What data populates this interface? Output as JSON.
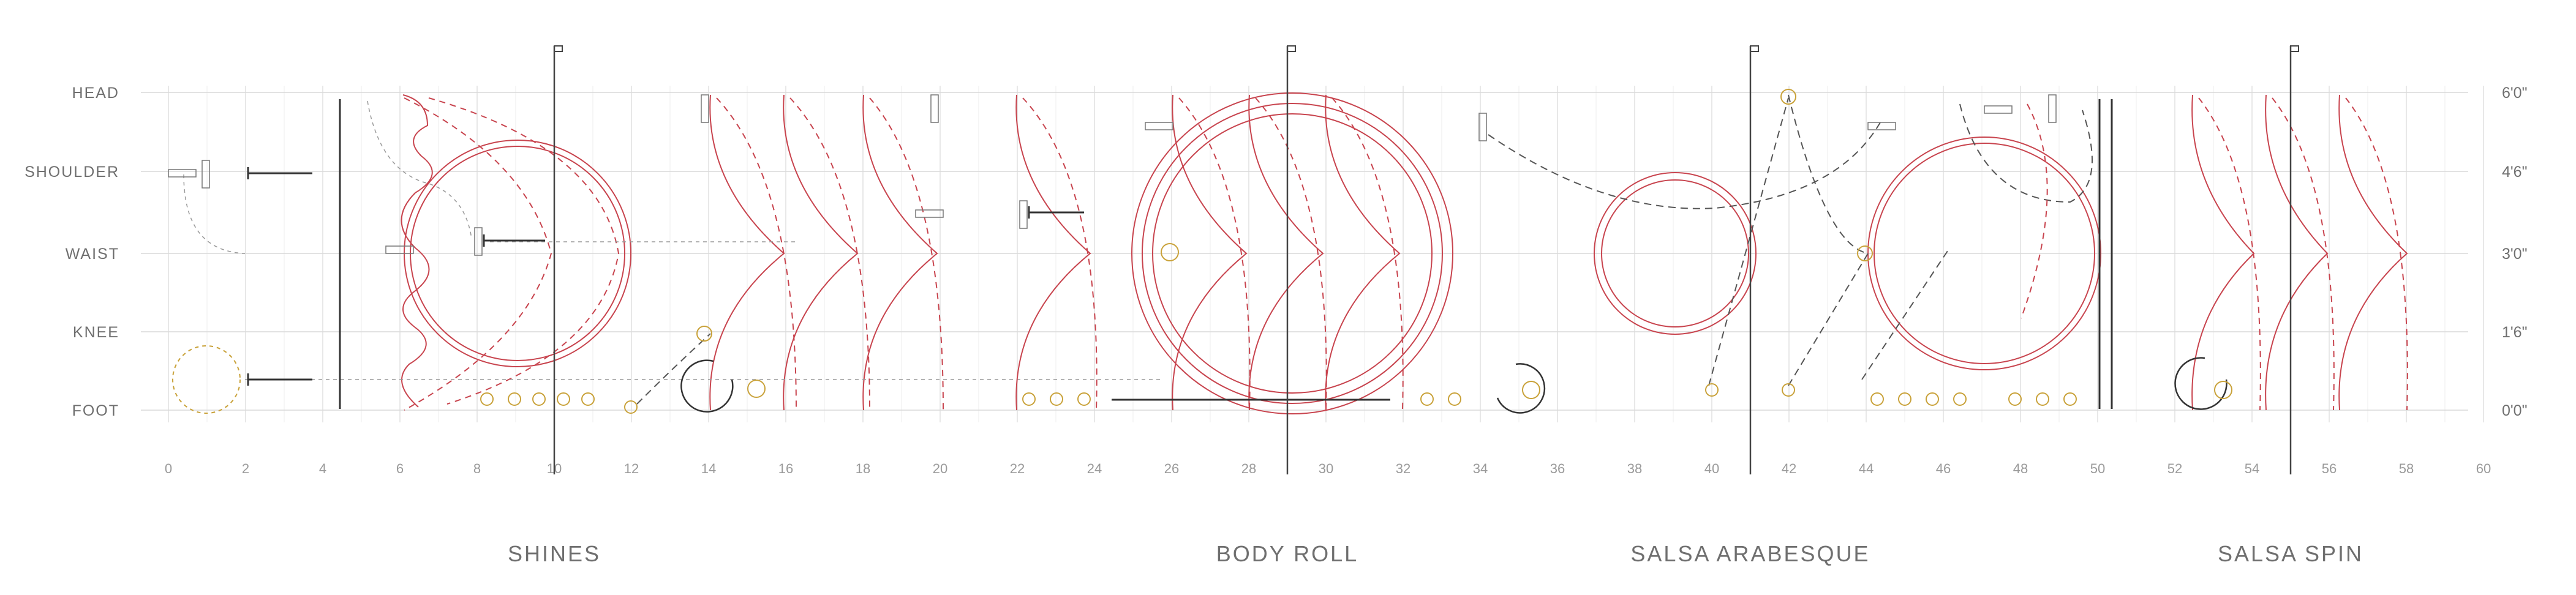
{
  "body_levels": [
    "HEAD",
    "SHOULDER",
    "WAIST",
    "KNEE",
    "FOOT"
  ],
  "heights": [
    "6'0\"",
    "4'6\"",
    "3'0\"",
    "1'6\"",
    "0'0\""
  ],
  "x_ticks": [
    "0",
    "2",
    "4",
    "6",
    "8",
    "10",
    "12",
    "14",
    "16",
    "18",
    "20",
    "22",
    "24",
    "26",
    "28",
    "30",
    "32",
    "34",
    "36",
    "38",
    "40",
    "42",
    "44",
    "46",
    "48",
    "50",
    "52",
    "54",
    "56",
    "58",
    "60"
  ],
  "sections": [
    {
      "label": "SHINES",
      "marker": 10
    },
    {
      "label": "BODY ROLL",
      "marker": 29
    },
    {
      "label": "SALSA ARABESQUE",
      "marker": 41
    },
    {
      "label": "SALSA SPIN",
      "marker": 55
    }
  ],
  "colors": {
    "grid": "#d9d9d9",
    "label": "#6f6f6f",
    "tick": "#9a9a9a",
    "path_red": "#c8444e",
    "path_dark": "#555555",
    "foot_gold": "#c9a23a",
    "marker": "#444444"
  }
}
